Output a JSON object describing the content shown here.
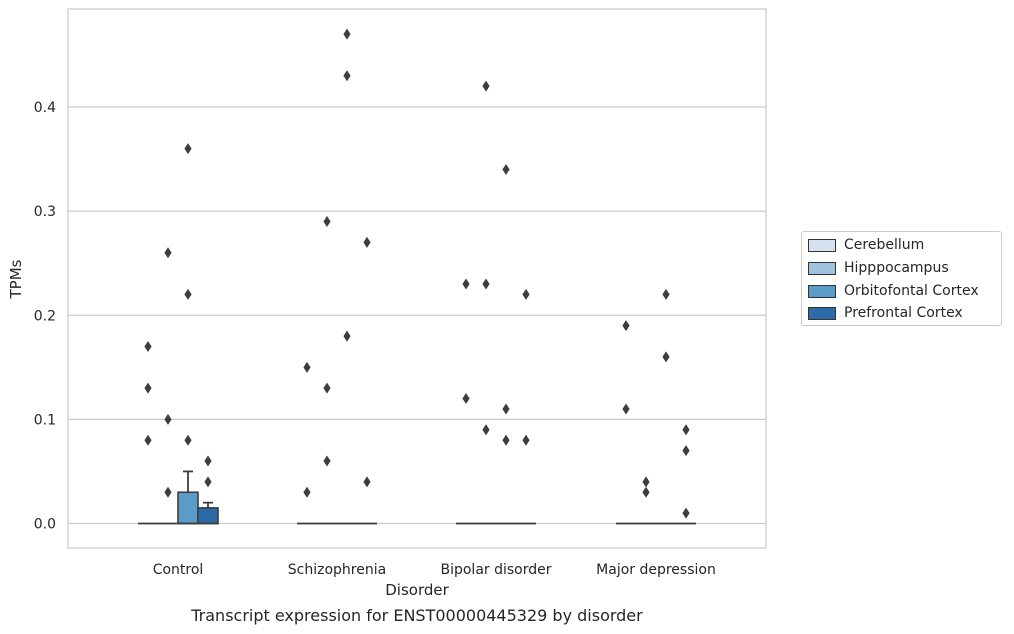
{
  "caption": "Transcript expression for ENST00000445329 by disorder",
  "chart_data": {
    "type": "box",
    "xlabel": "Disorder",
    "ylabel": "TPMs",
    "ylim": [
      -0.023,
      0.493
    ],
    "yticks": [
      0.0,
      0.1,
      0.2,
      0.3,
      0.4
    ],
    "ytick_labels": [
      "0.0",
      "0.1",
      "0.2",
      "0.3",
      "0.4"
    ],
    "grid": "horizontal",
    "legend_position": "right",
    "categories": [
      "Control",
      "Schizophrenia",
      "Bipolar disorder",
      "Major depression"
    ],
    "series": [
      {
        "name": "Cerebellum",
        "color": "#d4e2f0",
        "boxes": [
          {
            "q1": 0.0,
            "median": 0.0,
            "q3": 0.0,
            "whisker_low": 0.0,
            "whisker_high": 0.0,
            "outliers": [
              0.17,
              0.13,
              0.08
            ]
          },
          {
            "q1": 0.0,
            "median": 0.0,
            "q3": 0.0,
            "whisker_low": 0.0,
            "whisker_high": 0.0,
            "outliers": [
              0.15,
              0.03
            ]
          },
          {
            "q1": 0.0,
            "median": 0.0,
            "q3": 0.0,
            "whisker_low": 0.0,
            "whisker_high": 0.0,
            "outliers": [
              0.23,
              0.12
            ]
          },
          {
            "q1": 0.0,
            "median": 0.0,
            "q3": 0.0,
            "whisker_low": 0.0,
            "whisker_high": 0.0,
            "outliers": [
              0.19,
              0.11
            ]
          }
        ]
      },
      {
        "name": "Hipppocampus",
        "color": "#9fc3de",
        "boxes": [
          {
            "q1": 0.0,
            "median": 0.0,
            "q3": 0.0,
            "whisker_low": 0.0,
            "whisker_high": 0.0,
            "outliers": [
              0.26,
              0.1,
              0.03
            ]
          },
          {
            "q1": 0.0,
            "median": 0.0,
            "q3": 0.0,
            "whisker_low": 0.0,
            "whisker_high": 0.0,
            "outliers": [
              0.29,
              0.13,
              0.06
            ]
          },
          {
            "q1": 0.0,
            "median": 0.0,
            "q3": 0.0,
            "whisker_low": 0.0,
            "whisker_high": 0.0,
            "outliers": [
              0.42,
              0.23,
              0.09
            ]
          },
          {
            "q1": 0.0,
            "median": 0.0,
            "q3": 0.0,
            "whisker_low": 0.0,
            "whisker_high": 0.0,
            "outliers": [
              0.04,
              0.03
            ]
          }
        ]
      },
      {
        "name": "Orbitofontal Cortex",
        "color": "#5a9bc8",
        "boxes": [
          {
            "q1": 0.0,
            "median": 0.0,
            "q3": 0.03,
            "whisker_low": 0.0,
            "whisker_high": 0.05,
            "outliers": [
              0.36,
              0.22,
              0.08
            ]
          },
          {
            "q1": 0.0,
            "median": 0.0,
            "q3": 0.0,
            "whisker_low": 0.0,
            "whisker_high": 0.0,
            "outliers": [
              0.47,
              0.43,
              0.18
            ]
          },
          {
            "q1": 0.0,
            "median": 0.0,
            "q3": 0.0,
            "whisker_low": 0.0,
            "whisker_high": 0.0,
            "outliers": [
              0.34,
              0.11,
              0.08
            ]
          },
          {
            "q1": 0.0,
            "median": 0.0,
            "q3": 0.0,
            "whisker_low": 0.0,
            "whisker_high": 0.0,
            "outliers": [
              0.22,
              0.16
            ]
          }
        ]
      },
      {
        "name": "Prefrontal Cortex",
        "color": "#2c6aa8",
        "boxes": [
          {
            "q1": 0.0,
            "median": 0.0,
            "q3": 0.015,
            "whisker_low": 0.0,
            "whisker_high": 0.02,
            "outliers": [
              0.06,
              0.04
            ]
          },
          {
            "q1": 0.0,
            "median": 0.0,
            "q3": 0.0,
            "whisker_low": 0.0,
            "whisker_high": 0.0,
            "outliers": [
              0.27,
              0.04
            ]
          },
          {
            "q1": 0.0,
            "median": 0.0,
            "q3": 0.0,
            "whisker_low": 0.0,
            "whisker_high": 0.0,
            "outliers": [
              0.22,
              0.08
            ]
          },
          {
            "q1": 0.0,
            "median": 0.0,
            "q3": 0.0,
            "whisker_low": 0.0,
            "whisker_high": 0.0,
            "outliers": [
              0.09,
              0.07,
              0.01
            ]
          }
        ]
      }
    ]
  }
}
